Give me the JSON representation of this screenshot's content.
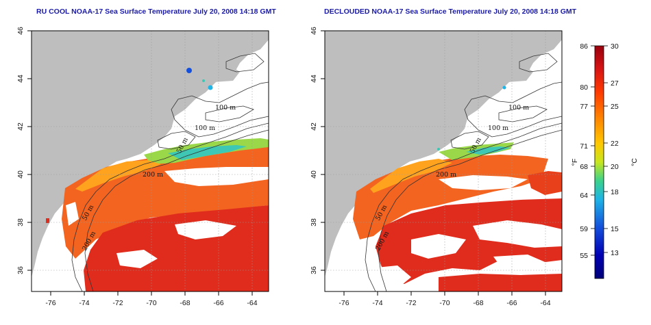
{
  "panels": [
    {
      "title": "RU COOL NOAA-17 Sea Surface Temperature July 20, 2008 14:18 GMT"
    },
    {
      "title": "DECLOUDED NOAA-17 Sea Surface Temperature July 20, 2008 14:18 GMT"
    }
  ],
  "map": {
    "x_ticks": [
      "-76",
      "-74",
      "-72",
      "-70",
      "-68",
      "-66",
      "-64"
    ],
    "y_ticks": [
      "46",
      "44",
      "42",
      "40",
      "38",
      "36"
    ],
    "contour_labels": [
      "100 m",
      "100 m",
      "50 m",
      "200 m",
      "50 m",
      "200 m"
    ],
    "land_color": "#bebebe",
    "ocean_color": "#ffffff"
  },
  "colorbar": {
    "f_unit": "°F",
    "c_unit": "°C",
    "f_labels": [
      "86",
      "80",
      "77",
      "71",
      "68",
      "64",
      "59",
      "55"
    ],
    "c_labels": [
      "30",
      "27",
      "25",
      "22",
      "20",
      "18",
      "15",
      "13"
    ],
    "colors": [
      "#99000d",
      "#d81414",
      "#ff3a00",
      "#ff8a00",
      "#ffc800",
      "#c8e61e",
      "#3cd28c",
      "#1eb4e6",
      "#1450dc",
      "#0000b4",
      "#00007a"
    ]
  }
}
